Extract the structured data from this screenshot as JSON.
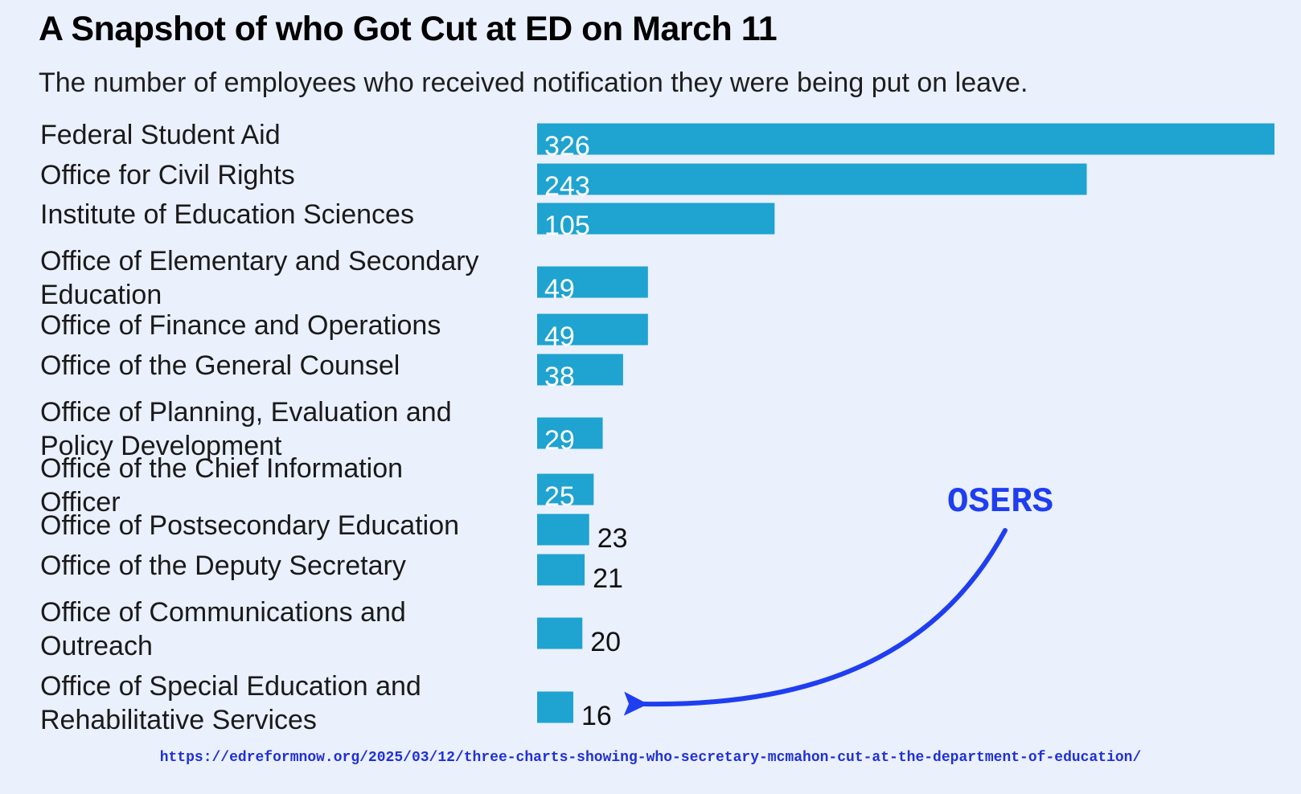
{
  "title": "A Snapshot of who Got Cut at ED on March 11",
  "subtitle": "The number of employees who received notification they were being put on leave.",
  "annotation": {
    "text": "OSERS",
    "color": "#1f3ef0",
    "points_to": "Office of Special Education and Rehabilitative Services"
  },
  "source_url": "https://edreformnow.org/2025/03/12/three-charts-showing-who-secretary-mcmahon-cut-at-the-department-of-education/",
  "colors": {
    "bar": "#1fa3d1",
    "background": "#eaf0fc",
    "label_inside": "#ffffff",
    "label_outside": "#111111"
  },
  "chart_data": {
    "type": "bar",
    "orientation": "horizontal",
    "categories": [
      "Federal Student Aid",
      "Office for Civil Rights",
      "Institute of Education Sciences",
      "Office of Elementary and Secondary Education",
      "Office of Finance and Operations",
      "Office of the General Counsel",
      "Office of Planning, Evaluation and Policy Development",
      "Office of the Chief Information Officer",
      "Office of Postsecondary Education",
      "Office of the Deputy Secretary",
      "Office of Communications and Outreach",
      "Office of Special Education and Rehabilitative Services"
    ],
    "values": [
      326,
      243,
      105,
      49,
      49,
      38,
      29,
      25,
      23,
      21,
      20,
      16
    ],
    "title": "A Snapshot of who Got Cut at ED on March 11",
    "subtitle": "The number of employees who received notification they were being put on leave.",
    "xlabel": "",
    "ylabel": "",
    "xlim": [
      0,
      326
    ],
    "grid": false,
    "legend": "none"
  }
}
